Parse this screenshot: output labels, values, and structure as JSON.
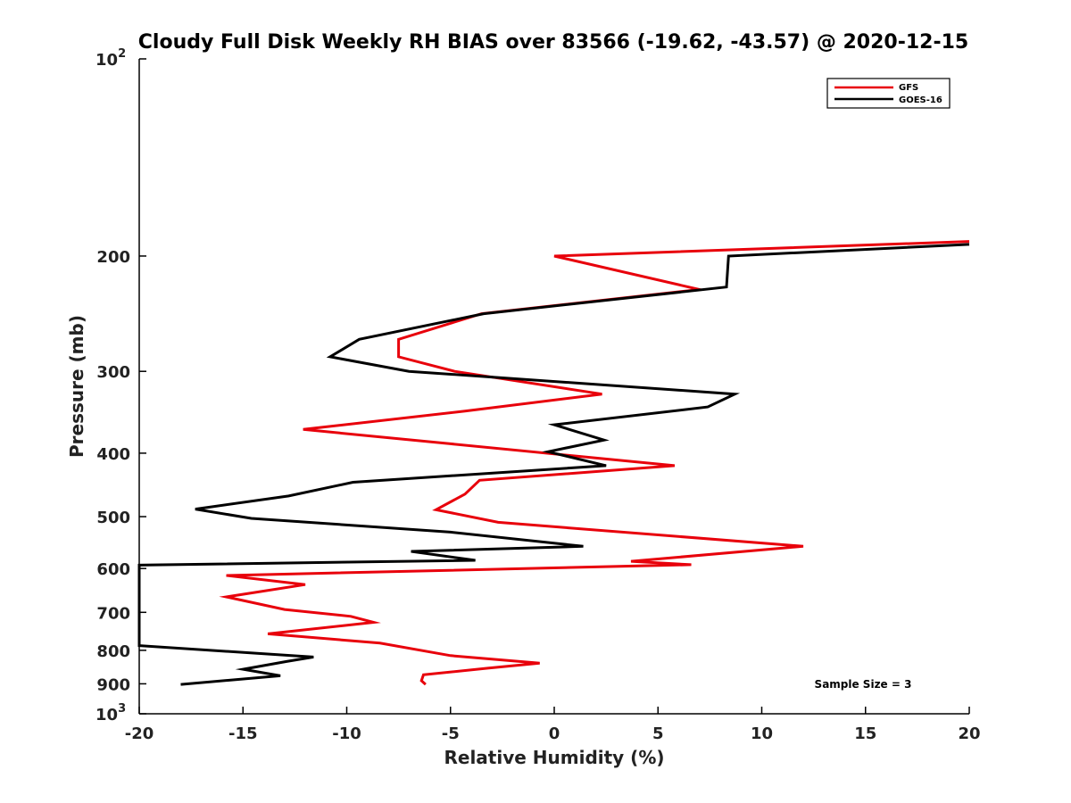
{
  "chart_data": {
    "type": "line",
    "title": "Cloudy Full Disk Weekly RH BIAS over 83566 (-19.62, -43.57) @ 2020-12-15",
    "xlabel": "Relative Humidity (%)",
    "ylabel": "Pressure (mb)",
    "xlim": [
      -20,
      20
    ],
    "ylim": [
      100,
      1000
    ],
    "yscale": "log",
    "y_reversed": true,
    "x_ticks": [
      "-20",
      "-15",
      "-10",
      "-5",
      "0",
      "5",
      "10",
      "15",
      "20"
    ],
    "x_tick_values": [
      -20,
      -15,
      -10,
      -5,
      0,
      5,
      10,
      15,
      20
    ],
    "y_tick_values": [
      100,
      200,
      300,
      400,
      500,
      600,
      700,
      800,
      900,
      1000
    ],
    "y_ticks": [
      {
        "base": "10",
        "exp": "2"
      },
      {
        "base": "200",
        "exp": ""
      },
      {
        "base": "300",
        "exp": ""
      },
      {
        "base": "400",
        "exp": ""
      },
      {
        "base": "500",
        "exp": ""
      },
      {
        "base": "600",
        "exp": ""
      },
      {
        "base": "700",
        "exp": ""
      },
      {
        "base": "800",
        "exp": ""
      },
      {
        "base": "900",
        "exp": ""
      },
      {
        "base": "10",
        "exp": "3"
      }
    ],
    "grid": false,
    "legend_position": "top-right",
    "series": [
      {
        "name": "GFS",
        "color": "#e8000b",
        "x": [
          20,
          0,
          7,
          -3.5,
          -7.5,
          -7.5,
          -4.8,
          2.3,
          -4.3,
          -12.1,
          -5,
          5.8,
          -3.6,
          -4.3,
          -5.7,
          -2.7,
          12,
          3.7,
          6.6,
          -15.8,
          -12,
          -15.8,
          -13,
          -9.8,
          -8.7,
          -13.8,
          -8.4,
          -5,
          -0.7,
          -3.2,
          -6.3,
          -6.4,
          -6.2
        ],
        "y": [
          190,
          200,
          225,
          245,
          268,
          285,
          300,
          325,
          345,
          368,
          387,
          418,
          440,
          462,
          488,
          510,
          555,
          585,
          592,
          615,
          635,
          663,
          693,
          710,
          725,
          755,
          780,
          815,
          837,
          852,
          872,
          890,
          902
        ]
      },
      {
        "name": "GOES-16",
        "color": "#000000",
        "x": [
          20,
          8.4,
          8.3,
          -3.4,
          -9.4,
          -10.8,
          -7,
          8.7,
          7.4,
          0,
          2.4,
          -0.3,
          2.5,
          -9.7,
          -12.8,
          -17.3,
          -14.6,
          -5,
          1.4,
          -6.9,
          -3.8,
          -20,
          -20,
          -20,
          -11.6,
          -12.9,
          -15,
          -13.2,
          -18
        ],
        "y": [
          192,
          200,
          223,
          245,
          268,
          285,
          300,
          325,
          340,
          362,
          382,
          398,
          418,
          443,
          465,
          487,
          503,
          528,
          555,
          565,
          583,
          593,
          595,
          787,
          819,
          832,
          855,
          875,
          902
        ]
      }
    ],
    "annotation": "Sample Size = 3"
  }
}
